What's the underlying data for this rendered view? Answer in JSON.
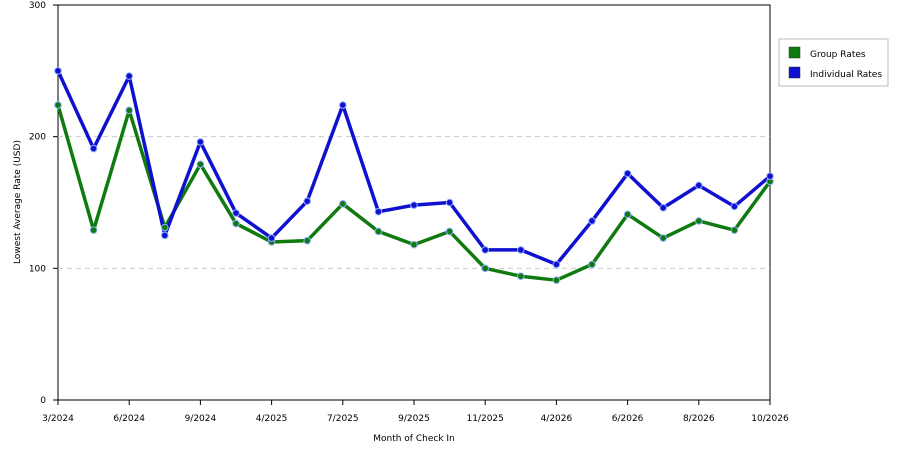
{
  "chart_data": {
    "type": "line",
    "x_label": "Month of Check In",
    "y_label": "Lowest Average Rate (USD)",
    "categories": [
      "3/2024",
      null,
      "6/2024",
      null,
      "9/2024",
      null,
      "4/2025",
      null,
      "7/2025",
      null,
      "9/2025",
      null,
      "11/2025",
      null,
      "4/2026",
      null,
      "6/2026",
      null,
      "8/2026",
      null,
      "10/2026"
    ],
    "series": [
      {
        "name": "Group Rates",
        "color": "#0f7a0f",
        "values": [
          224,
          129,
          220,
          131,
          179,
          134,
          120,
          121,
          149,
          128,
          118,
          128,
          100,
          94,
          91,
          103,
          141,
          123,
          136,
          129,
          166
        ]
      },
      {
        "name": "Individual Rates",
        "color": "#1010d0",
        "values": [
          250,
          191,
          246,
          125,
          196,
          142,
          123,
          151,
          224,
          143,
          148,
          150,
          114,
          114,
          103,
          136,
          172,
          146,
          163,
          147,
          170
        ]
      }
    ],
    "ylim": [
      0,
      300
    ],
    "yticks": [
      0,
      100,
      200,
      300
    ],
    "grid": true
  }
}
